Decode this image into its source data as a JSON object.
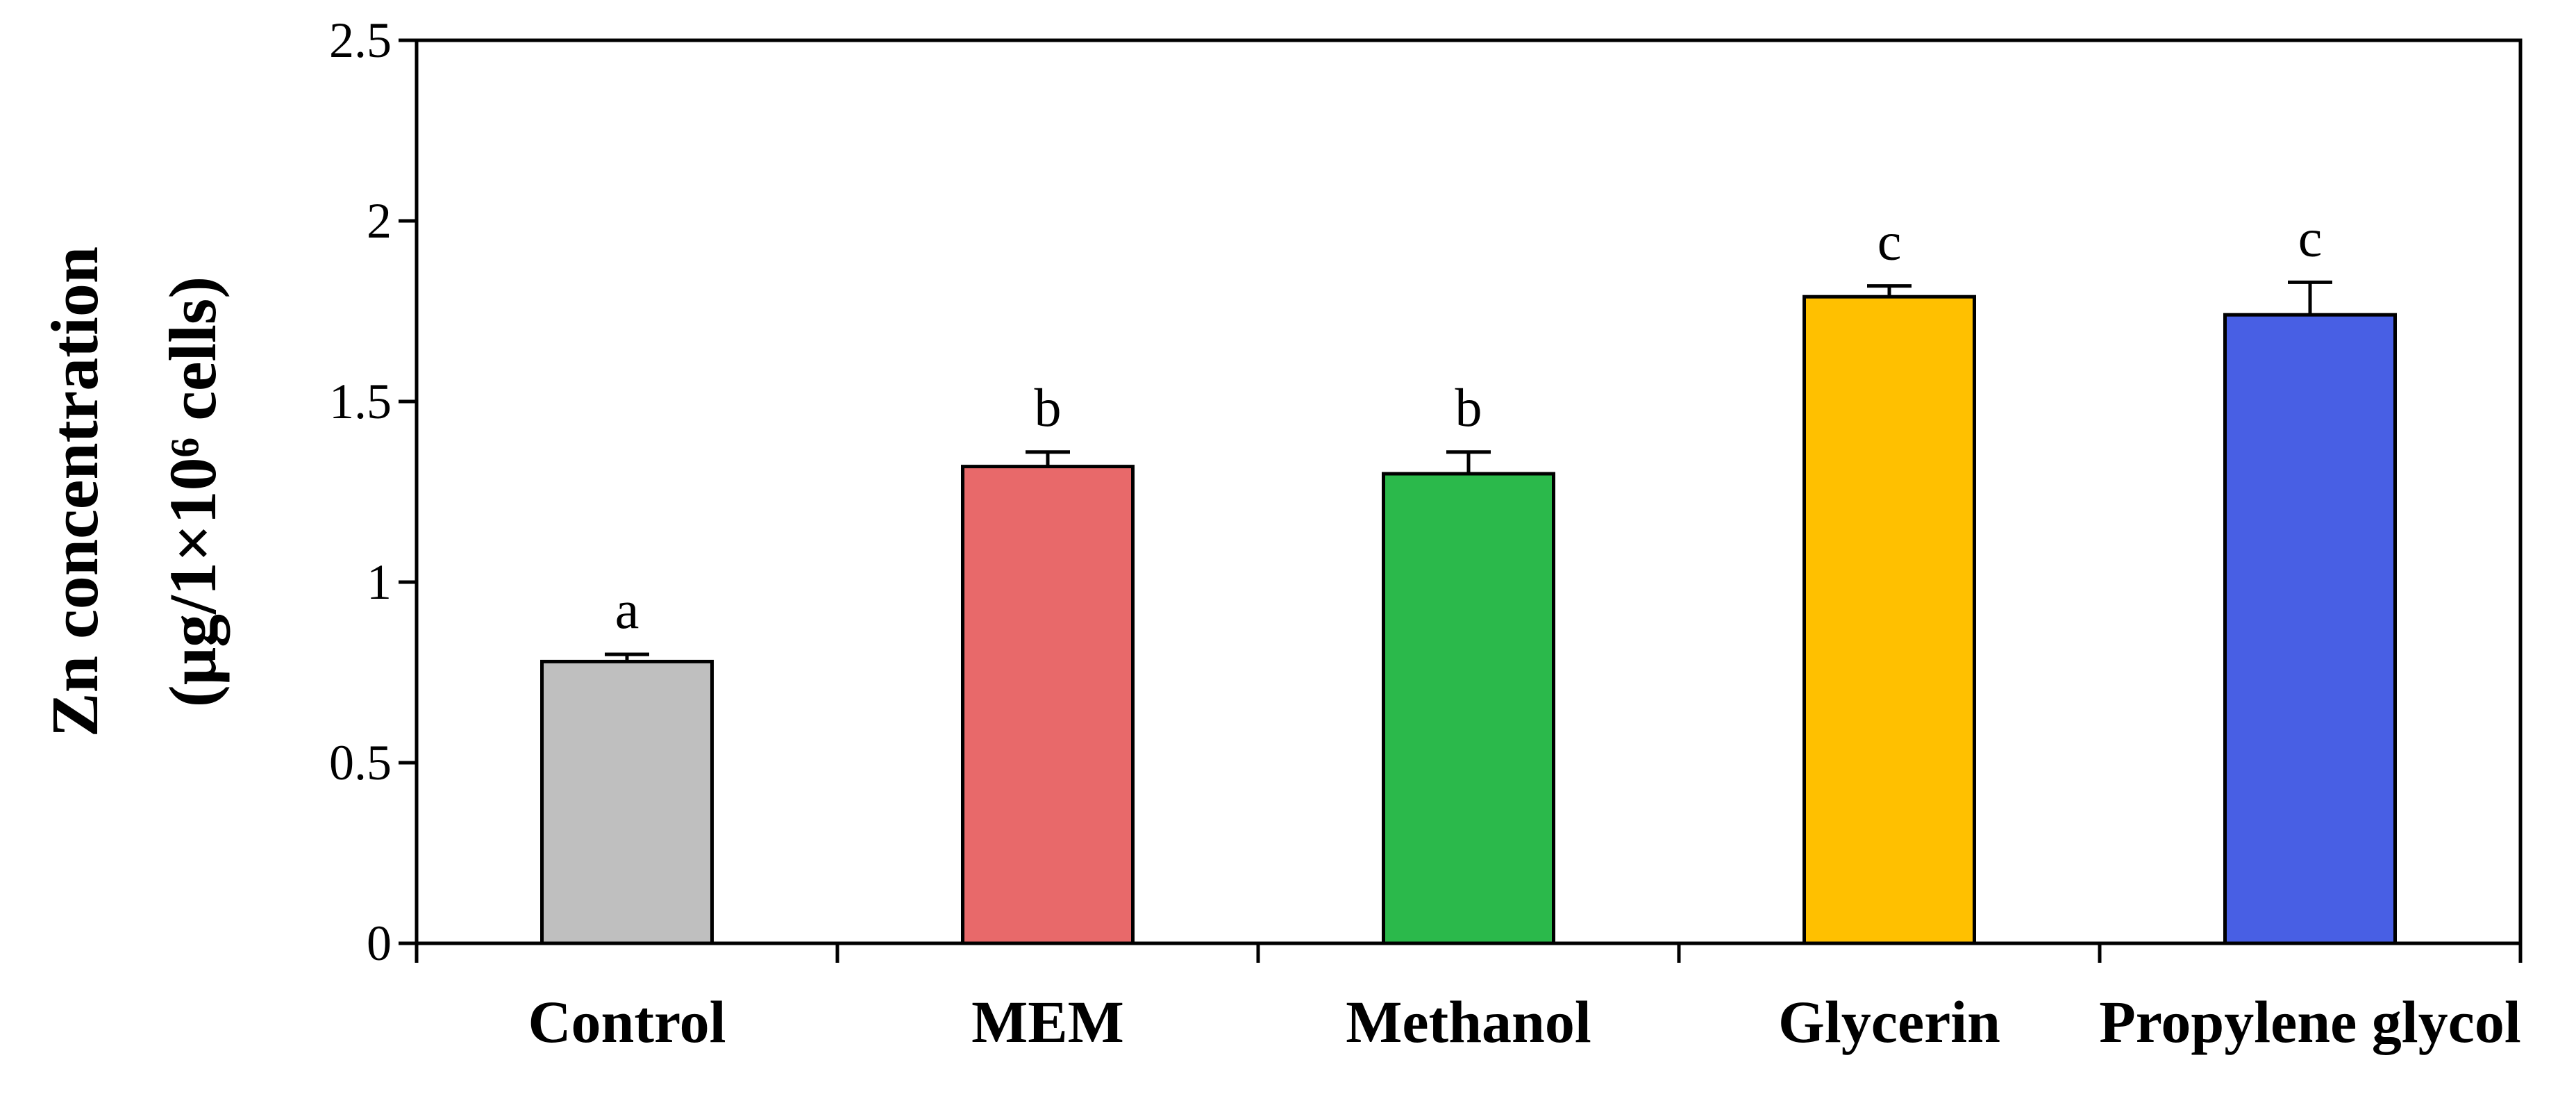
{
  "chart_data": {
    "type": "bar",
    "title": "",
    "xlabel": "",
    "ylabel": "Zn concentration",
    "ylabel_unit": "(μg/1×10⁶ cells)",
    "ylim": [
      0,
      2.5
    ],
    "yticks": [
      0,
      0.5,
      1,
      1.5,
      2,
      2.5
    ],
    "ytick_labels": [
      "0",
      "0.5",
      "1",
      "1.5",
      "2",
      "2.5"
    ],
    "grid": false,
    "legend": "none",
    "categories": [
      "Control",
      "MEM",
      "Methanol",
      "Glycerin",
      "Propylene glycol"
    ],
    "values": [
      0.78,
      1.32,
      1.3,
      1.79,
      1.74
    ],
    "errors": [
      0.02,
      0.04,
      0.06,
      0.03,
      0.09
    ],
    "significance": [
      "a",
      "b",
      "b",
      "c",
      "c"
    ],
    "colors": [
      "#bfbfbf",
      "#e8696a",
      "#2bb94b",
      "#ffc000",
      "#485fe4"
    ]
  }
}
